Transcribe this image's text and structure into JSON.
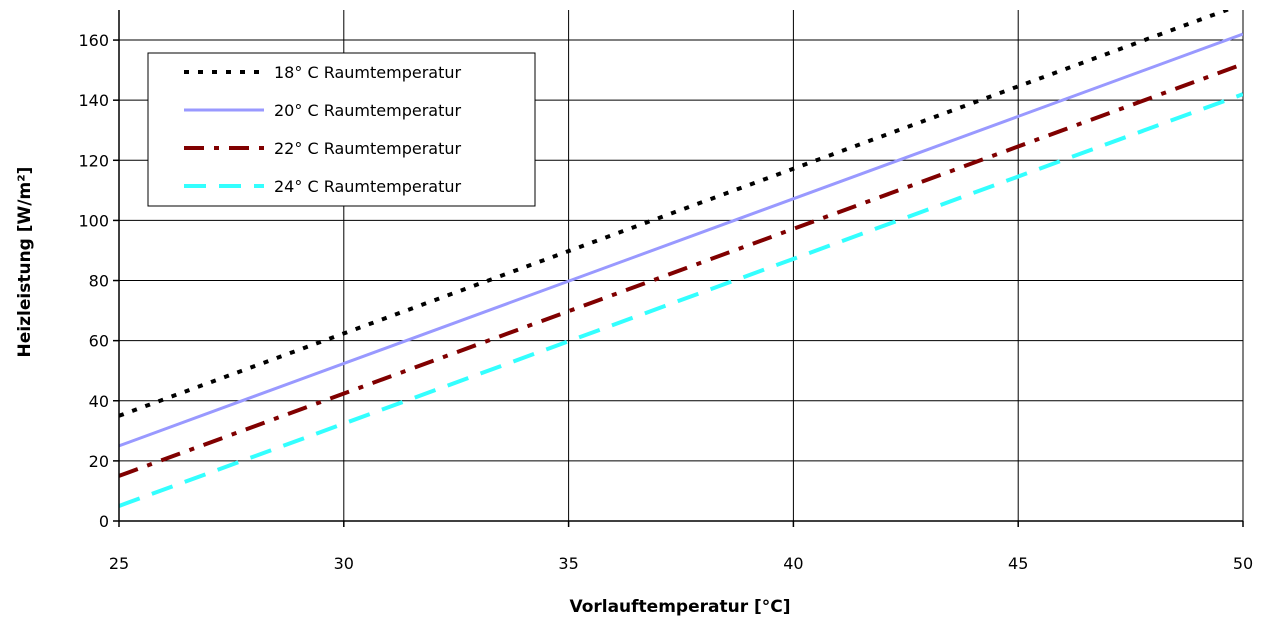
{
  "chart_data": {
    "type": "line",
    "xlabel": "Vorlauftemperatur [°C]",
    "ylabel": "Heizleistung [W/m²]",
    "xlim": [
      25,
      50
    ],
    "ylim": [
      0,
      170
    ],
    "xticks": [
      25,
      30,
      35,
      40,
      45,
      50
    ],
    "yticks": [
      0,
      20,
      40,
      60,
      80,
      100,
      120,
      140,
      160
    ],
    "grid": true,
    "legend_position": "top-left",
    "x": [
      25,
      50
    ],
    "series": [
      {
        "name": "18° C Raumtemperatur",
        "values": [
          35,
          172
        ],
        "color": "#000000",
        "style": "dotted"
      },
      {
        "name": "20° C Raumtemperatur",
        "values": [
          25,
          162
        ],
        "color": "#9999ff",
        "style": "solid"
      },
      {
        "name": "22° C Raumtemperatur",
        "values": [
          15,
          152
        ],
        "color": "#800000",
        "style": "dashdot"
      },
      {
        "name": "24° C Raumtemperatur",
        "values": [
          5,
          142
        ],
        "color": "#33ffff",
        "style": "dashed"
      }
    ]
  }
}
